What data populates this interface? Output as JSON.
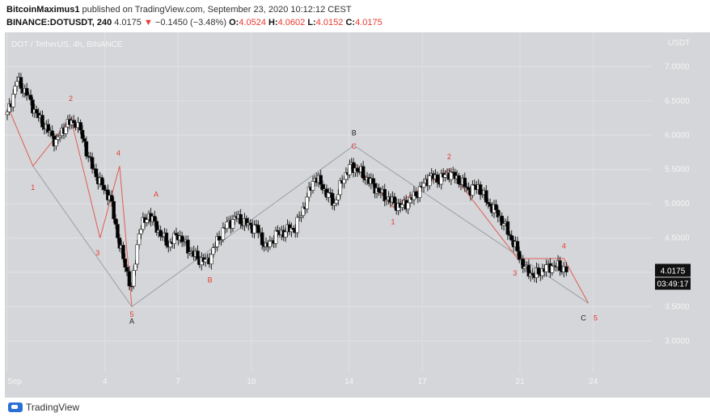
{
  "header": {
    "author": "BitcoinMaximus1",
    "published_text": "published on TradingView.com, September 23, 2020 10:12:12 CEST",
    "symbol": "BINANCE:DOTUSDT, 240",
    "last": "4.0175",
    "change": "−0.1450 (−3.48%)",
    "o_label": "O:",
    "o_value": "4.0524",
    "h_label": "H:",
    "h_value": "4.0602",
    "l_label": "L:",
    "l_value": "4.0152",
    "c_label": "C:",
    "c_value": "4.0175"
  },
  "chart_data": {
    "type": "candlestick",
    "title": "DOT / TetherUS, 4h, BINANCE",
    "currency_label": "USDT",
    "ylim": [
      2.55,
      7.5
    ],
    "y_ticks": [
      3.0,
      3.5,
      4.0,
      4.5,
      5.0,
      5.5,
      6.0,
      6.5,
      7.0
    ],
    "y_tick_labels": [
      "3.0000",
      "3.5000",
      "4.0000",
      "4.5000",
      "5.0000",
      "5.5000",
      "6.0000",
      "6.5000",
      "7.0000"
    ],
    "x_ticks": [
      0,
      4,
      7,
      10,
      14,
      17,
      21,
      24
    ],
    "x_tick_labels": [
      "Sep",
      "4",
      "7",
      "10",
      "14",
      "17",
      "21",
      "24"
    ],
    "xlim": [
      -0.1,
      26.4
    ],
    "last_price": "4.0175",
    "countdown": "03:49:17",
    "close_path": [
      [
        0,
        6.3
      ],
      [
        0.4,
        6.8
      ],
      [
        0.8,
        6.6
      ],
      [
        1.2,
        6.3
      ],
      [
        1.6,
        6.1
      ],
      [
        2.0,
        5.9
      ],
      [
        2.4,
        6.15
      ],
      [
        2.8,
        6.2
      ],
      [
        3.0,
        6.05
      ],
      [
        3.4,
        5.6
      ],
      [
        3.8,
        5.3
      ],
      [
        4.2,
        5.1
      ],
      [
        4.6,
        4.4
      ],
      [
        4.9,
        4.0
      ],
      [
        5.1,
        3.75
      ],
      [
        5.4,
        4.6
      ],
      [
        5.8,
        4.85
      ],
      [
        6.2,
        4.6
      ],
      [
        6.6,
        4.4
      ],
      [
        7.0,
        4.55
      ],
      [
        7.4,
        4.35
      ],
      [
        7.8,
        4.2
      ],
      [
        8.2,
        4.15
      ],
      [
        8.6,
        4.45
      ],
      [
        9.0,
        4.7
      ],
      [
        9.4,
        4.8
      ],
      [
        9.8,
        4.7
      ],
      [
        10.2,
        4.65
      ],
      [
        10.6,
        4.35
      ],
      [
        11.0,
        4.55
      ],
      [
        11.4,
        4.6
      ],
      [
        11.8,
        4.65
      ],
      [
        12.2,
        5.0
      ],
      [
        12.6,
        5.4
      ],
      [
        13.0,
        5.2
      ],
      [
        13.4,
        5.0
      ],
      [
        13.8,
        5.4
      ],
      [
        14.1,
        5.55
      ],
      [
        14.5,
        5.45
      ],
      [
        14.9,
        5.3
      ],
      [
        15.3,
        5.15
      ],
      [
        15.7,
        5.05
      ],
      [
        16.1,
        4.95
      ],
      [
        16.5,
        5.05
      ],
      [
        16.9,
        5.2
      ],
      [
        17.3,
        5.4
      ],
      [
        17.7,
        5.35
      ],
      [
        18.1,
        5.45
      ],
      [
        18.5,
        5.35
      ],
      [
        18.9,
        5.2
      ],
      [
        19.3,
        5.25
      ],
      [
        19.7,
        5.0
      ],
      [
        20.1,
        4.85
      ],
      [
        20.5,
        4.6
      ],
      [
        20.9,
        4.3
      ],
      [
        21.2,
        4.05
      ],
      [
        21.6,
        3.95
      ],
      [
        22.0,
        4.05
      ],
      [
        22.4,
        4.1
      ],
      [
        22.8,
        4.05
      ],
      [
        23.0,
        4.02
      ]
    ],
    "wave_lines": [
      {
        "color": "#9aa0a8",
        "points": [
          [
            1.05,
            5.55
          ],
          [
            5.1,
            3.5
          ],
          [
            14.2,
            5.85
          ],
          [
            23.8,
            3.55
          ]
        ]
      },
      {
        "color": "#e05b52",
        "points": [
          [
            0.1,
            6.35
          ],
          [
            1.05,
            5.55
          ],
          [
            2.6,
            6.25
          ],
          [
            3.8,
            4.5
          ],
          [
            4.6,
            5.55
          ],
          [
            5.1,
            3.5
          ]
        ]
      },
      {
        "color": "#e05b52",
        "points": [
          [
            14.2,
            5.6
          ],
          [
            15.8,
            4.95
          ],
          [
            18.1,
            5.5
          ],
          [
            20.9,
            4.2
          ],
          [
            22.8,
            4.2
          ],
          [
            23.8,
            3.55
          ]
        ]
      }
    ],
    "annotations": [
      {
        "text": "1",
        "x": 1.05,
        "y": 5.2,
        "color": "#e8392f"
      },
      {
        "text": "2",
        "x": 2.6,
        "y": 6.5,
        "color": "#e8392f"
      },
      {
        "text": "3",
        "x": 3.7,
        "y": 4.25,
        "color": "#e8392f"
      },
      {
        "text": "4",
        "x": 4.55,
        "y": 5.7,
        "color": "#e8392f"
      },
      {
        "text": "5",
        "x": 5.1,
        "y": 3.35,
        "color": "#e8392f"
      },
      {
        "text": "A",
        "x": 5.1,
        "y": 3.25,
        "color": "#222222"
      },
      {
        "text": "A",
        "x": 6.1,
        "y": 5.1,
        "color": "#e8392f"
      },
      {
        "text": "B",
        "x": 8.3,
        "y": 3.85,
        "color": "#e8392f"
      },
      {
        "text": "B",
        "x": 14.2,
        "y": 6.0,
        "color": "#222222"
      },
      {
        "text": "C",
        "x": 14.2,
        "y": 5.8,
        "color": "#e8392f"
      },
      {
        "text": "1",
        "x": 15.8,
        "y": 4.7,
        "color": "#e8392f"
      },
      {
        "text": "2",
        "x": 18.1,
        "y": 5.65,
        "color": "#e8392f"
      },
      {
        "text": "3",
        "x": 20.8,
        "y": 3.95,
        "color": "#e8392f"
      },
      {
        "text": "4",
        "x": 22.8,
        "y": 4.35,
        "color": "#e8392f"
      },
      {
        "text": "C",
        "x": 23.6,
        "y": 3.3,
        "color": "#222222"
      },
      {
        "text": "5",
        "x": 24.1,
        "y": 3.3,
        "color": "#e8392f"
      }
    ],
    "colors": {
      "background": "#d4d6d9",
      "up": "#ffffff",
      "down": "#000000",
      "wick": "#222222",
      "grid": "#dfe1e4"
    }
  },
  "footer": {
    "brand": "TradingView"
  }
}
